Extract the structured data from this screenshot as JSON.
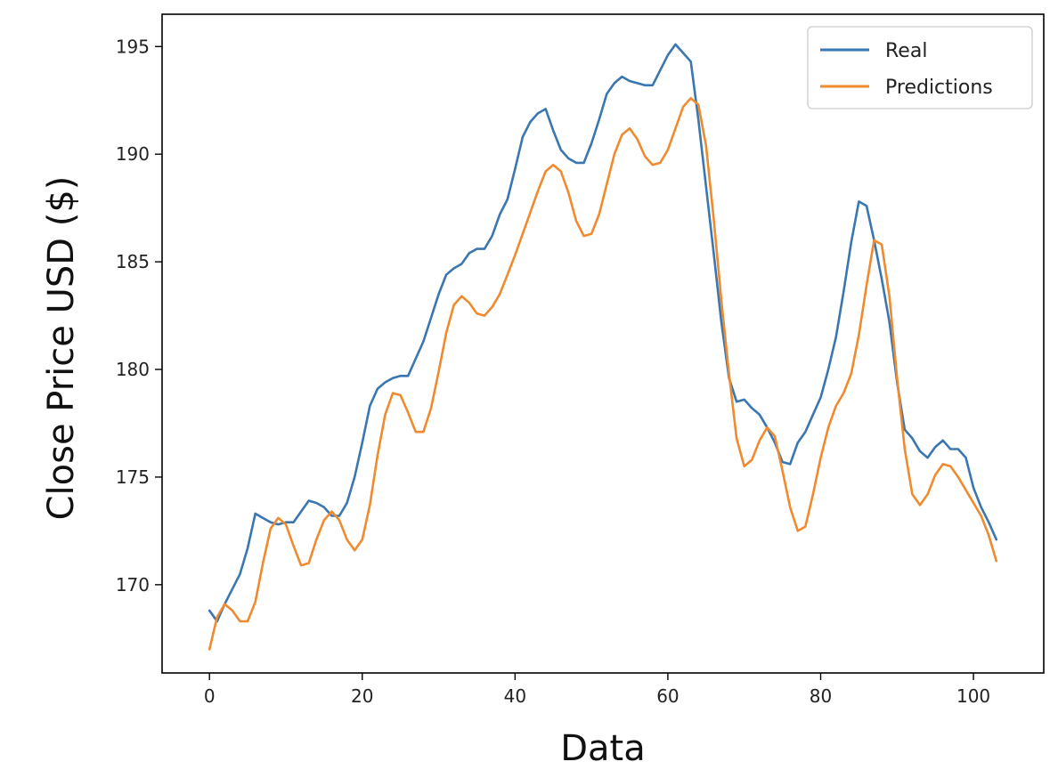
{
  "chart_data": {
    "type": "line",
    "title": "",
    "xlabel": "Data",
    "ylabel": "Close Price USD ($)",
    "xlim": [
      -6.2,
      109.2
    ],
    "ylim": [
      165.9,
      196.5
    ],
    "xticks": [
      0,
      20,
      40,
      60,
      80,
      100
    ],
    "yticks": [
      170,
      175,
      180,
      185,
      190,
      195
    ],
    "grid": false,
    "legend": "top-right",
    "colors": {
      "Real": "#3a76b0",
      "Predictions": "#ef8a2f"
    },
    "series": [
      {
        "name": "Real",
        "color": "#3a76b0",
        "x": [
          0,
          1,
          2,
          3,
          4,
          5,
          6,
          7,
          8,
          9,
          10,
          11,
          12,
          13,
          14,
          15,
          16,
          17,
          18,
          19,
          20,
          21,
          22,
          23,
          24,
          25,
          26,
          27,
          28,
          29,
          30,
          31,
          32,
          33,
          34,
          35,
          36,
          37,
          38,
          39,
          40,
          41,
          42,
          43,
          44,
          45,
          46,
          47,
          48,
          49,
          50,
          51,
          52,
          53,
          54,
          55,
          56,
          57,
          58,
          59,
          60,
          61,
          62,
          63,
          64,
          65,
          66,
          67,
          68,
          69,
          70,
          71,
          72,
          73,
          74,
          75,
          76,
          77,
          78,
          79,
          80,
          81,
          82,
          83,
          84,
          85,
          86,
          87,
          88,
          89,
          90,
          91,
          92,
          93,
          94,
          95,
          96,
          97,
          98,
          99,
          100,
          101,
          102,
          103
        ],
        "y": [
          168.8,
          168.3,
          169.1,
          169.8,
          170.5,
          171.7,
          173.3,
          173.1,
          172.9,
          172.8,
          172.9,
          172.9,
          173.4,
          173.9,
          173.8,
          173.6,
          173.2,
          173.2,
          173.8,
          175.0,
          176.6,
          178.3,
          179.1,
          179.4,
          179.6,
          179.7,
          179.7,
          180.5,
          181.3,
          182.4,
          183.5,
          184.4,
          184.7,
          184.9,
          185.4,
          185.6,
          185.6,
          186.2,
          187.2,
          187.9,
          189.3,
          190.8,
          191.5,
          191.9,
          192.1,
          191.1,
          190.2,
          189.8,
          189.6,
          189.6,
          190.5,
          191.6,
          192.8,
          193.3,
          193.6,
          193.4,
          193.3,
          193.2,
          193.2,
          193.9,
          194.6,
          195.1,
          194.7,
          194.3,
          191.6,
          188.5,
          185.4,
          182.2,
          179.6,
          178.5,
          178.6,
          178.2,
          177.9,
          177.3,
          176.6,
          175.7,
          175.6,
          176.6,
          177.1,
          177.9,
          178.7,
          180.0,
          181.5,
          183.6,
          185.9,
          187.8,
          187.6,
          186.0,
          184.2,
          182.2,
          179.4,
          177.2,
          176.8,
          176.2,
          175.9,
          176.4,
          176.7,
          176.3,
          176.3,
          175.9,
          174.5,
          173.6,
          172.9,
          172.1
        ]
      },
      {
        "name": "Predictions",
        "color": "#ef8a2f",
        "x": [
          0,
          1,
          2,
          3,
          4,
          5,
          6,
          7,
          8,
          9,
          10,
          11,
          12,
          13,
          14,
          15,
          16,
          17,
          18,
          19,
          20,
          21,
          22,
          23,
          24,
          25,
          26,
          27,
          28,
          29,
          30,
          31,
          32,
          33,
          34,
          35,
          36,
          37,
          38,
          39,
          40,
          41,
          42,
          43,
          44,
          45,
          46,
          47,
          48,
          49,
          50,
          51,
          52,
          53,
          54,
          55,
          56,
          57,
          58,
          59,
          60,
          61,
          62,
          63,
          64,
          65,
          66,
          67,
          68,
          69,
          70,
          71,
          72,
          73,
          74,
          75,
          76,
          77,
          78,
          79,
          80,
          81,
          82,
          83,
          84,
          85,
          86,
          87,
          88,
          89,
          90,
          91,
          92,
          93,
          94,
          95,
          96,
          97,
          98,
          99,
          100,
          101,
          102,
          103
        ],
        "y": [
          167.0,
          168.5,
          169.1,
          168.8,
          168.3,
          168.3,
          169.2,
          171.0,
          172.6,
          173.1,
          172.8,
          171.8,
          170.9,
          171.0,
          172.1,
          173.0,
          173.4,
          173.0,
          172.1,
          171.6,
          172.1,
          173.7,
          176.0,
          177.9,
          178.9,
          178.8,
          178.0,
          177.1,
          177.1,
          178.2,
          179.9,
          181.7,
          183.0,
          183.4,
          183.1,
          182.6,
          182.5,
          182.9,
          183.5,
          184.4,
          185.3,
          186.3,
          187.3,
          188.3,
          189.2,
          189.5,
          189.2,
          188.2,
          186.9,
          186.2,
          186.3,
          187.2,
          188.6,
          190.0,
          190.9,
          191.2,
          190.7,
          189.9,
          189.5,
          189.6,
          190.2,
          191.2,
          192.2,
          192.6,
          192.3,
          190.4,
          187.0,
          183.2,
          179.8,
          176.8,
          175.5,
          175.8,
          176.7,
          177.3,
          176.9,
          175.3,
          173.6,
          172.5,
          172.7,
          174.2,
          175.9,
          177.3,
          178.3,
          178.9,
          179.8,
          181.6,
          183.9,
          186.0,
          185.8,
          183.4,
          179.6,
          176.3,
          174.2,
          173.7,
          174.2,
          175.1,
          175.6,
          175.5,
          175.0,
          174.4,
          173.8,
          173.2,
          172.3,
          171.1
        ]
      }
    ]
  }
}
